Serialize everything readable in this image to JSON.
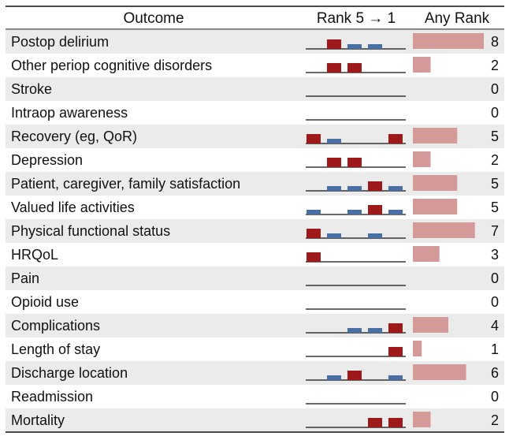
{
  "colors": {
    "rank_high": "#9e1a1a",
    "rank_low": "#4a6fa5",
    "any_rank_bar": "#d49a9a",
    "row_shade": "#ebebeb"
  },
  "chart_data": {
    "type": "table",
    "headers": {
      "outcome": "Outcome",
      "rank": "Rank 5 → 1",
      "any_rank": "Any Rank"
    },
    "rank_order": [
      5,
      4,
      3,
      2,
      1
    ],
    "rank_color_legend": {
      "red": "rank 5–4 or dominant",
      "blue": "lower count"
    },
    "any_rank_max": 8,
    "rows": [
      {
        "outcome": "Postop delirium",
        "ranks": [
          0,
          2,
          1,
          1,
          0
        ],
        "colors": [
          "",
          "red",
          "blue",
          "blue",
          ""
        ],
        "any_rank": 8
      },
      {
        "outcome": "Other periop cognitive disorders",
        "ranks": [
          0,
          2,
          2,
          0,
          0
        ],
        "colors": [
          "",
          "red",
          "red",
          "",
          ""
        ],
        "any_rank": 2
      },
      {
        "outcome": "Stroke",
        "ranks": [
          0,
          0,
          0,
          0,
          0
        ],
        "colors": [
          "",
          "",
          "",
          "",
          ""
        ],
        "any_rank": 0
      },
      {
        "outcome": "Intraop awareness",
        "ranks": [
          0,
          0,
          0,
          0,
          0
        ],
        "colors": [
          "",
          "",
          "",
          "",
          ""
        ],
        "any_rank": 0
      },
      {
        "outcome": "Recovery (eg, QoR)",
        "ranks": [
          2,
          1,
          0,
          0,
          2
        ],
        "colors": [
          "red",
          "blue",
          "",
          "",
          "red"
        ],
        "any_rank": 5
      },
      {
        "outcome": "Depression",
        "ranks": [
          0,
          2,
          2,
          0,
          0
        ],
        "colors": [
          "",
          "red",
          "red",
          "",
          ""
        ],
        "any_rank": 2
      },
      {
        "outcome": "Patient, caregiver, family satisfaction",
        "ranks": [
          0,
          1,
          1,
          2,
          1
        ],
        "colors": [
          "",
          "blue",
          "blue",
          "red",
          "blue"
        ],
        "any_rank": 5
      },
      {
        "outcome": "Valued life activities",
        "ranks": [
          1,
          0,
          1,
          2,
          1
        ],
        "colors": [
          "blue",
          "",
          "blue",
          "red",
          "blue"
        ],
        "any_rank": 5
      },
      {
        "outcome": "Physical functional status",
        "ranks": [
          2,
          1,
          0,
          1,
          0
        ],
        "colors": [
          "red",
          "blue",
          "",
          "blue",
          ""
        ],
        "any_rank": 7
      },
      {
        "outcome": "HRQoL",
        "ranks": [
          2,
          0,
          0,
          0,
          0
        ],
        "colors": [
          "red",
          "",
          "",
          "",
          ""
        ],
        "any_rank": 3
      },
      {
        "outcome": "Pain",
        "ranks": [
          0,
          0,
          0,
          0,
          0
        ],
        "colors": [
          "",
          "",
          "",
          "",
          ""
        ],
        "any_rank": 0
      },
      {
        "outcome": "Opioid use",
        "ranks": [
          0,
          0,
          0,
          0,
          0
        ],
        "colors": [
          "",
          "",
          "",
          "",
          ""
        ],
        "any_rank": 0
      },
      {
        "outcome": "Complications",
        "ranks": [
          0,
          0,
          1,
          1,
          2
        ],
        "colors": [
          "",
          "",
          "blue",
          "blue",
          "red"
        ],
        "any_rank": 4
      },
      {
        "outcome": "Length of stay",
        "ranks": [
          0,
          0,
          0,
          0,
          2
        ],
        "colors": [
          "",
          "",
          "",
          "",
          "red"
        ],
        "any_rank": 1
      },
      {
        "outcome": "Discharge location",
        "ranks": [
          0,
          1,
          2,
          0,
          1
        ],
        "colors": [
          "",
          "blue",
          "red",
          "",
          "blue"
        ],
        "any_rank": 6
      },
      {
        "outcome": "Readmission",
        "ranks": [
          0,
          0,
          0,
          0,
          0
        ],
        "colors": [
          "",
          "",
          "",
          "",
          ""
        ],
        "any_rank": 0
      },
      {
        "outcome": "Mortality",
        "ranks": [
          0,
          0,
          0,
          2,
          2
        ],
        "colors": [
          "",
          "",
          "",
          "red",
          "red"
        ],
        "any_rank": 2
      }
    ]
  }
}
